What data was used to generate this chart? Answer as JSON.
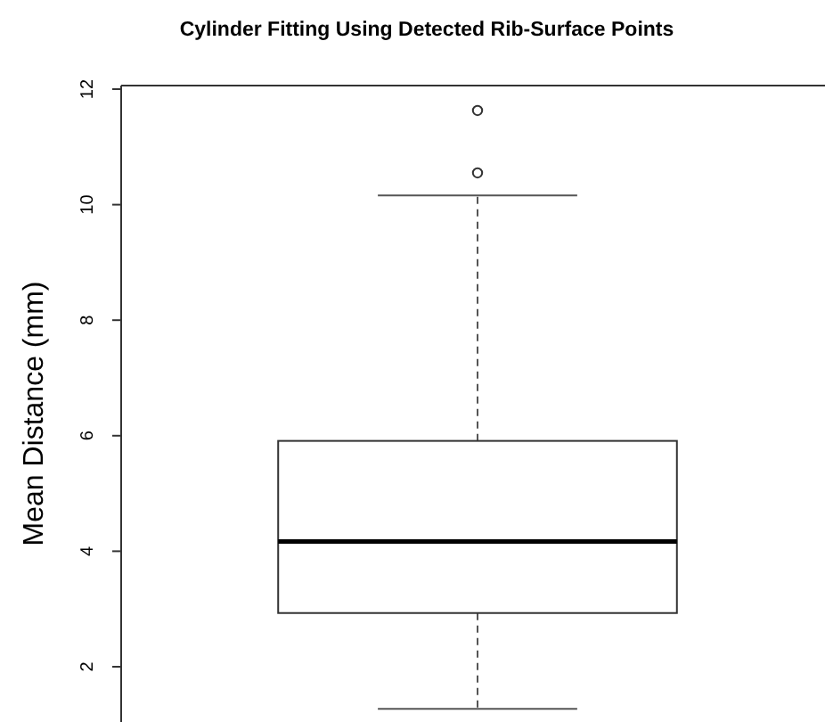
{
  "chart_data": {
    "type": "box",
    "title": "Cylinder Fitting Using Detected Rib-Surface Points",
    "ylabel": "Mean Distance (mm)",
    "categories": [
      null
    ],
    "boxes": [
      {
        "low": 1.27,
        "q1": 2.93,
        "median": 4.17,
        "q3": 5.91,
        "high": 10.16,
        "outliers": [
          10.55,
          11.63
        ]
      }
    ],
    "ylim": [
      1.1,
      12
    ],
    "yticks": [
      2,
      4,
      6,
      8,
      10,
      12
    ],
    "grid": false
  }
}
